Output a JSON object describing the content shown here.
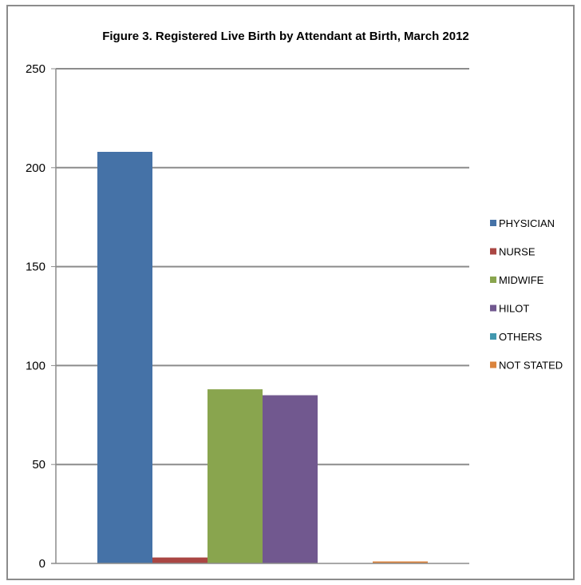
{
  "chart_data": {
    "type": "bar",
    "title": "Figure 3. Registered Live Birth by Attendant at Birth, March 2012",
    "xlabel": "",
    "ylabel": "",
    "ylim": [
      0,
      250
    ],
    "yticks": [
      0,
      50,
      100,
      150,
      200,
      250
    ],
    "grid": true,
    "legend_position": "right",
    "categories": [
      ""
    ],
    "series": [
      {
        "name": "PHYSICIAN",
        "values": [
          208
        ],
        "color": "#4572A7"
      },
      {
        "name": "NURSE",
        "values": [
          3
        ],
        "color": "#AA4643"
      },
      {
        "name": "MIDWIFE",
        "values": [
          88
        ],
        "color": "#89A54E"
      },
      {
        "name": "HILOT",
        "values": [
          85
        ],
        "color": "#71588F"
      },
      {
        "name": "OTHERS",
        "values": [
          0
        ],
        "color": "#4198AF"
      },
      {
        "name": "NOT STATED",
        "values": [
          1
        ],
        "color": "#DB843D"
      }
    ]
  }
}
